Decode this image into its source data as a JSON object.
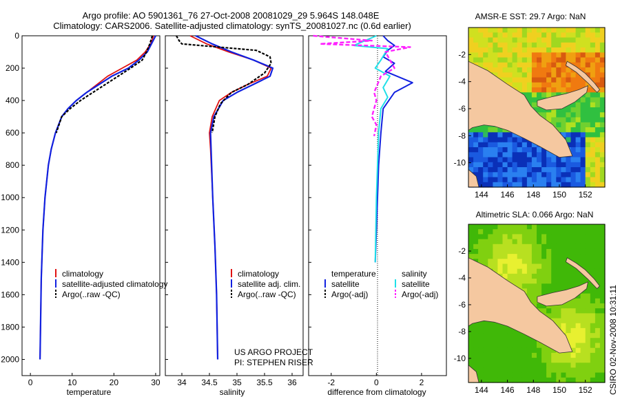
{
  "header": {
    "line1": "Argo profile: AO 5901361_76 27-Oct-2008 20081029_29 5.964S 148.048E",
    "line2": "Climatology: CARS2006. Satellite-adjusted climatology: synTS_20081027.nc (0.6d earlier)"
  },
  "footer": {
    "credit_line1": "US ARGO PROJECT",
    "credit_line2": "PI: STEPHEN RISER",
    "stamp": "CSIRO 02-Nov-2008 10:31:11"
  },
  "colors": {
    "climatology": "#e01010",
    "satellite": "#1020e0",
    "argo": "#000000",
    "sal_satellite": "#20e0e8",
    "sal_argo": "#ff20ff",
    "land": "#f5c8a0",
    "ocean_blue": "#1050d0"
  },
  "chart_data": [
    {
      "type": "line",
      "name": "temperature-profile",
      "xlabel": "temperature",
      "ylabel": "",
      "xlim": [
        -2,
        31
      ],
      "ylim": [
        0,
        2100
      ],
      "y_inverted": true,
      "xticks": [
        "0",
        "10",
        "20",
        "30"
      ],
      "xtick_values": [
        0,
        10,
        20,
        30
      ],
      "yticks": [
        "0",
        "200",
        "400",
        "600",
        "800",
        "1000",
        "1200",
        "1400",
        "1600",
        "1800",
        "2000"
      ],
      "ytick_values": [
        0,
        200,
        400,
        600,
        800,
        1000,
        1200,
        1400,
        1600,
        1800,
        2000
      ],
      "legend": [
        "climatology",
        "satellite-adjusted climatology",
        "Argo(..raw -QC)"
      ],
      "series": [
        {
          "name": "climatology",
          "x": [
            29.5,
            28.8,
            27.5,
            25.5,
            22.0,
            18.5,
            16.0,
            13.5,
            11.0,
            9.0,
            7.5,
            6.0,
            5.0,
            4.3,
            3.5,
            3.0,
            2.6,
            2.3
          ],
          "y": [
            0,
            50,
            100,
            150,
            200,
            250,
            300,
            350,
            400,
            450,
            500,
            600,
            700,
            800,
            1000,
            1200,
            1500,
            2000
          ]
        },
        {
          "name": "satellite",
          "x": [
            30.0,
            29.0,
            28.0,
            26.0,
            23.5,
            19.5,
            16.5,
            13.5,
            11.0,
            9.0,
            7.5,
            6.0,
            5.0,
            4.3,
            3.5,
            3.0,
            2.6,
            2.3
          ],
          "y": [
            0,
            50,
            100,
            150,
            200,
            250,
            300,
            350,
            400,
            450,
            500,
            600,
            700,
            800,
            1000,
            1200,
            1500,
            2000
          ]
        },
        {
          "name": "argo",
          "x": [
            29.2,
            28.6,
            27.8,
            26.8,
            24.0,
            21.0,
            18.0,
            15.0,
            12.0,
            9.5,
            7.5,
            6.2
          ],
          "y": [
            0,
            50,
            100,
            150,
            200,
            250,
            300,
            350,
            400,
            450,
            500,
            600
          ]
        }
      ]
    },
    {
      "type": "line",
      "name": "salinity-profile",
      "xlabel": "salinity",
      "xlim": [
        33.7,
        36.2
      ],
      "ylim": [
        0,
        2100
      ],
      "y_inverted": true,
      "xticks": [
        "34",
        "34.5",
        "35",
        "35.5",
        "36"
      ],
      "xtick_values": [
        34,
        34.5,
        35,
        35.5,
        36
      ],
      "legend": [
        "climatology",
        "satellite adj. clim.",
        "Argo(..raw -QC)"
      ],
      "series": [
        {
          "name": "climatology",
          "x": [
            34.15,
            34.45,
            34.85,
            35.3,
            35.62,
            35.55,
            35.2,
            34.9,
            34.68,
            34.55,
            34.5,
            34.52,
            34.56,
            34.6,
            34.63,
            34.65
          ],
          "y": [
            0,
            50,
            100,
            150,
            200,
            250,
            300,
            350,
            400,
            500,
            600,
            700,
            1000,
            1300,
            1600,
            2000
          ]
        },
        {
          "name": "satellite",
          "x": [
            34.25,
            34.55,
            34.9,
            35.3,
            35.65,
            35.6,
            35.3,
            35.0,
            34.75,
            34.58,
            34.52,
            34.53,
            34.56,
            34.6,
            34.63,
            34.65
          ],
          "y": [
            0,
            50,
            100,
            150,
            200,
            250,
            300,
            350,
            400,
            500,
            600,
            700,
            1000,
            1300,
            1600,
            2000
          ]
        },
        {
          "name": "argo",
          "x": [
            33.9,
            33.95,
            34.0,
            35.35,
            35.6,
            35.62,
            35.5,
            35.2,
            34.9,
            34.7,
            34.6,
            34.55
          ],
          "y": [
            0,
            30,
            50,
            90,
            130,
            170,
            230,
            300,
            350,
            420,
            500,
            600
          ]
        }
      ]
    },
    {
      "type": "line",
      "name": "difference-from-climatology",
      "xlabel": "difference from climatology",
      "xlim": [
        -3,
        3.1
      ],
      "ylim": [
        0,
        2100
      ],
      "y_inverted": true,
      "xticks": [
        "-2",
        "0",
        "2"
      ],
      "xtick_values": [
        -2,
        0,
        2
      ],
      "legend_headers": [
        "temperature",
        "salinity"
      ],
      "legend": [
        "satellite",
        "Argo(-adj)",
        "satellite",
        "Argo(-adj)"
      ],
      "series": [
        {
          "name": "temperature satellite",
          "x": [
            0.3,
            0.5,
            0.8,
            0.5,
            0.3,
            0.8,
            0.4,
            1.6,
            0.8,
            0.3,
            0.2,
            0.1,
            0.05,
            0.0,
            -0.05
          ],
          "y": [
            0,
            30,
            60,
            90,
            130,
            170,
            220,
            290,
            350,
            450,
            600,
            800,
            1000,
            1200,
            1400
          ]
        },
        {
          "name": "salinity satellite",
          "x": [
            0.0,
            -0.5,
            -1.0,
            0.5,
            0.2,
            -0.05,
            0.6,
            0.3,
            0.5,
            0.2,
            0.1,
            0.05,
            0.0,
            -0.05
          ],
          "y": [
            0,
            30,
            60,
            80,
            150,
            200,
            250,
            320,
            380,
            450,
            600,
            800,
            1000,
            1400
          ]
        },
        {
          "name": "salinity argo",
          "x": [
            -2.8,
            -0.2,
            -2.5,
            1.5,
            0.4,
            0.8,
            0.2,
            -0.1,
            0.0,
            -0.2,
            0.0,
            -0.1
          ],
          "y": [
            0,
            30,
            50,
            70,
            100,
            200,
            250,
            350,
            400,
            500,
            550,
            620
          ]
        }
      ]
    },
    {
      "type": "heatmap",
      "name": "amsre-sst-map",
      "title": "AMSR-E SST: 29.7 Argo: NaN",
      "xticks": [
        "144",
        "146",
        "148",
        "150",
        "152"
      ],
      "yticks": [
        "-2",
        "-4",
        "-6",
        "-8",
        "-10"
      ],
      "xlim": [
        143,
        153.5
      ],
      "ylim": [
        -11.8,
        0
      ],
      "argo_position": {
        "lon": 148.048,
        "lat": -5.964
      }
    },
    {
      "type": "heatmap",
      "name": "altimetric-sla-map",
      "title": "Altimetric SLA: 0.066 Argo: NaN",
      "xticks": [
        "144",
        "146",
        "148",
        "150",
        "152"
      ],
      "yticks": [
        "-2",
        "-4",
        "-6",
        "-8",
        "-10"
      ],
      "xlim": [
        143,
        153.5
      ],
      "ylim": [
        -11.8,
        0
      ],
      "argo_position": {
        "lon": 148.048,
        "lat": -5.964
      }
    }
  ]
}
